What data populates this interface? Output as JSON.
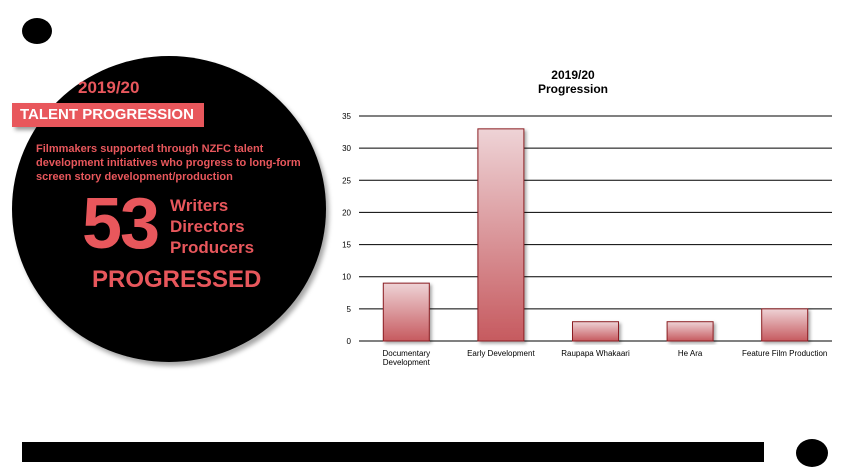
{
  "panel": {
    "year": "2019/20",
    "label": "TALENT PROGRESSION",
    "description": "Filmmakers supported through NZFC talent development initiatives who progress to long-form screen story development/production",
    "number": "53",
    "roles": [
      "Writers",
      "Directors",
      "Producers"
    ],
    "status": "PROGRESSED"
  },
  "colors": {
    "accent": "#e8575c",
    "bar_top": "#eed3d6",
    "bar_bottom": "#c65a5f",
    "bar_stroke": "#8b1e22"
  },
  "chart_data": {
    "type": "bar",
    "title": "2019/20",
    "subtitle": "Progression",
    "categories": [
      [
        "Documentary",
        "Development"
      ],
      [
        "Early Development"
      ],
      [
        "Raupapa Whakaari"
      ],
      [
        "He Ara"
      ],
      [
        "Feature Film Production"
      ]
    ],
    "values": [
      9,
      33,
      3,
      3,
      5
    ],
    "ylim": [
      0,
      35
    ],
    "yticks": [
      0,
      5,
      10,
      15,
      20,
      25,
      30,
      35
    ],
    "grid": true,
    "legend": "none"
  }
}
